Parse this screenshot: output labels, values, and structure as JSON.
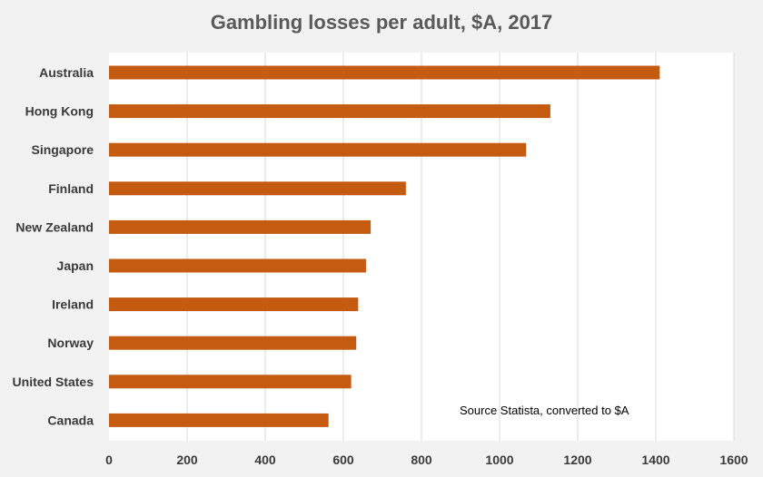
{
  "chart_data": {
    "type": "bar",
    "orientation": "horizontal",
    "title": "Gambling losses per adult, $A, 2017",
    "categories": [
      "Australia",
      "Hong Kong",
      "Singapore",
      "Finland",
      "New Zealand",
      "Japan",
      "Ireland",
      "Norway",
      "United States",
      "Canada"
    ],
    "values": [
      1410,
      1130,
      1068,
      760,
      670,
      658,
      638,
      633,
      620,
      562
    ],
    "xlim": [
      0,
      1600
    ],
    "xticks": [
      0,
      200,
      400,
      600,
      800,
      1000,
      1200,
      1400,
      1600
    ],
    "grid": "vertical",
    "annotation": "Source Statista, converted to $A",
    "colors": {
      "bar": "#c55a11",
      "background": "#f2f2f2",
      "plot_background": "#ffffff",
      "gridline": "#d9d9d9"
    }
  }
}
